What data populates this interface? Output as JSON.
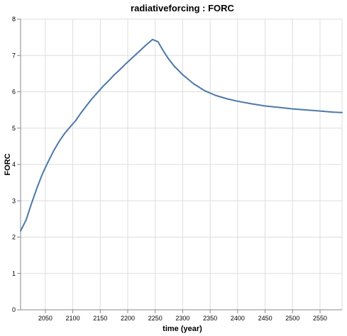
{
  "chart_data": {
    "type": "line",
    "title": "radiativeforcing : FORC",
    "xlabel": "time (year)",
    "ylabel": "FORC",
    "xlim": [
      2005,
      2590
    ],
    "ylim": [
      0,
      8
    ],
    "x_ticks": [
      2050,
      2100,
      2150,
      2200,
      2250,
      2300,
      2350,
      2400,
      2450,
      2500,
      2550
    ],
    "y_ticks": [
      0,
      1,
      2,
      3,
      4,
      5,
      6,
      7,
      8
    ],
    "grid": true,
    "series": [
      {
        "name": "FORC",
        "color": "#4c78a8",
        "x": [
          2005,
          2015,
          2025,
          2035,
          2045,
          2055,
          2065,
          2075,
          2085,
          2095,
          2105,
          2115,
          2125,
          2135,
          2145,
          2155,
          2165,
          2175,
          2185,
          2195,
          2205,
          2215,
          2225,
          2235,
          2245,
          2255,
          2265,
          2275,
          2285,
          2300,
          2320,
          2340,
          2360,
          2380,
          2400,
          2425,
          2450,
          2475,
          2500,
          2525,
          2550,
          2575,
          2590
        ],
        "values": [
          2.17,
          2.47,
          2.93,
          3.36,
          3.75,
          4.07,
          4.37,
          4.63,
          4.85,
          5.03,
          5.2,
          5.42,
          5.62,
          5.81,
          5.98,
          6.15,
          6.3,
          6.46,
          6.6,
          6.75,
          6.89,
          7.03,
          7.17,
          7.31,
          7.44,
          7.38,
          7.12,
          6.89,
          6.7,
          6.47,
          6.22,
          6.03,
          5.9,
          5.81,
          5.74,
          5.67,
          5.61,
          5.57,
          5.53,
          5.5,
          5.47,
          5.44,
          5.43
        ]
      }
    ]
  }
}
